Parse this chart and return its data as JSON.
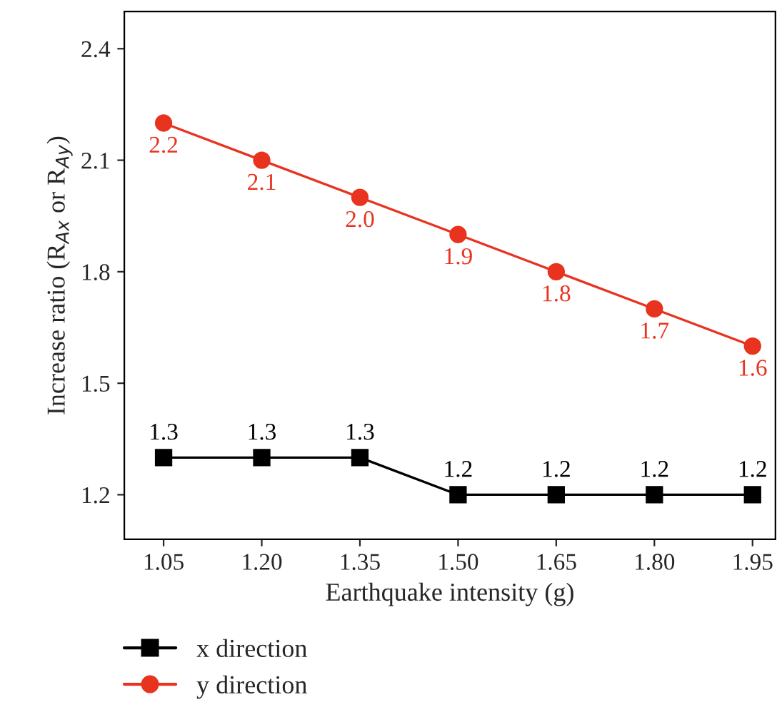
{
  "chart_data": {
    "type": "line",
    "xlabel": "Earthquake intensity (g)",
    "ylabel": "Increase ratio (R$_{Ax}$ or R$_{Ay}$)",
    "x": [
      1.05,
      1.2,
      1.35,
      1.5,
      1.65,
      1.8,
      1.95
    ],
    "xlim": [
      0.99,
      1.985
    ],
    "xticks": [
      {
        "value": 1.05,
        "label": "1.05"
      },
      {
        "value": 1.2,
        "label": "1.20"
      },
      {
        "value": 1.35,
        "label": "1.35"
      },
      {
        "value": 1.5,
        "label": "1.50"
      },
      {
        "value": 1.65,
        "label": "1.65"
      },
      {
        "value": 1.8,
        "label": "1.80"
      },
      {
        "value": 1.95,
        "label": "1.95"
      }
    ],
    "ylim": [
      1.08,
      2.5
    ],
    "yticks": [
      {
        "value": 1.2,
        "label": "1.2"
      },
      {
        "value": 1.5,
        "label": "1.5"
      },
      {
        "value": 1.8,
        "label": "1.8"
      },
      {
        "value": 2.1,
        "label": "2.1"
      },
      {
        "value": 2.4,
        "label": "2.4"
      }
    ],
    "series": [
      {
        "name": "x direction",
        "color": "#000000",
        "marker": "square",
        "values": [
          1.3,
          1.3,
          1.3,
          1.2,
          1.2,
          1.2,
          1.2
        ],
        "value_labels": [
          "1.3",
          "1.3",
          "1.3",
          "1.2",
          "1.2",
          "1.2",
          "1.2"
        ]
      },
      {
        "name": "y direction",
        "color": "#e8331f",
        "marker": "circle",
        "values": [
          2.2,
          2.1,
          2.0,
          1.9,
          1.8,
          1.7,
          1.6
        ],
        "value_labels": [
          "2.2",
          "2.1",
          "2.0",
          "1.9",
          "1.8",
          "1.7",
          "1.6"
        ]
      }
    ],
    "legend": "bottom",
    "grid": false,
    "line_style": "solid"
  }
}
